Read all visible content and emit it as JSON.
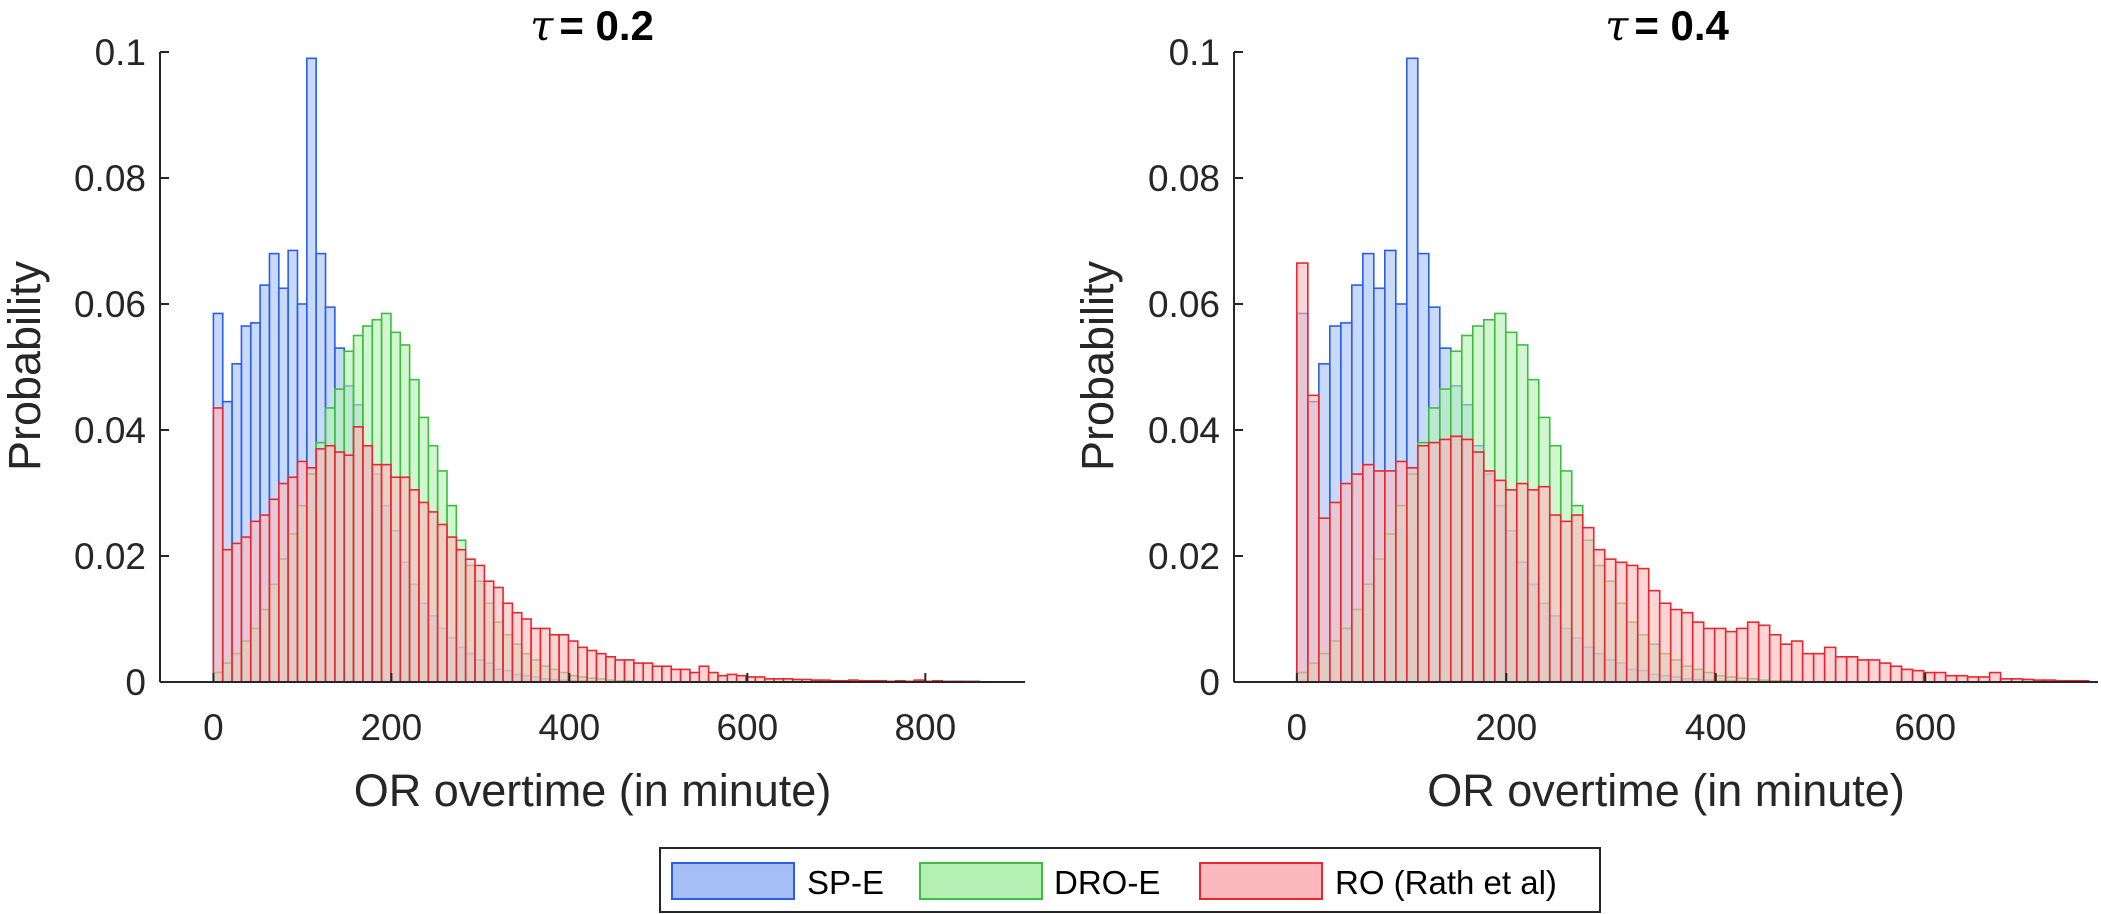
{
  "colors": {
    "sp_e": {
      "fill": "#a5bff6",
      "edge": "#2a5ee8"
    },
    "dro_e": {
      "fill": "#b4f0b4",
      "edge": "#3cbf3c"
    },
    "ro": {
      "fill": "#fbb9bd",
      "edge": "#e8272e"
    },
    "axis": "#262626"
  },
  "legend": {
    "entries": [
      {
        "label": "SP-E",
        "series": "sp_e"
      },
      {
        "label": "DRO-E",
        "series": "dro_e"
      },
      {
        "label": "RO (Rath et al)",
        "series": "ro"
      }
    ]
  },
  "chart_data": [
    {
      "type": "bar",
      "title": "= 0.2",
      "title_symbol": "τ",
      "xlabel": "OR overtime (in minute)",
      "ylabel": "Probability",
      "xlim": [
        -60,
        912
      ],
      "ylim": [
        0,
        0.1
      ],
      "xticks": [
        0,
        200,
        400,
        600,
        800
      ],
      "xtick_labels": [
        "0",
        "200",
        "400",
        "600",
        "800"
      ],
      "yticks": [
        0,
        0.02,
        0.04,
        0.06,
        0.08,
        0.1
      ],
      "ytick_labels": [
        "0",
        "0.02",
        "0.04",
        "0.06",
        "0.08",
        "0.1"
      ],
      "bin_width": 10.5,
      "bin_start": 0,
      "grid": false,
      "series": [
        {
          "name": "SP-E",
          "key": "sp_e",
          "values": [
            0.0585,
            0.0445,
            0.0505,
            0.0565,
            0.057,
            0.063,
            0.068,
            0.0625,
            0.0685,
            0.06,
            0.099,
            0.068,
            0.0595,
            0.053,
            0.047,
            0.044,
            0.0375,
            0.033,
            0.028,
            0.024,
            0.019,
            0.0155,
            0.0125,
            0.0105,
            0.0085,
            0.007,
            0.0055,
            0.0045,
            0.0035,
            0.003,
            0.002,
            0.0018,
            0.0012,
            0.001,
            0.0008,
            0.0005,
            0.0004,
            0.0003,
            0.0002,
            0.0002,
            0.0001
          ]
        },
        {
          "name": "DRO-E",
          "key": "dro_e",
          "values": [
            0.0015,
            0.003,
            0.0045,
            0.0065,
            0.0085,
            0.0115,
            0.0155,
            0.0195,
            0.0235,
            0.028,
            0.033,
            0.038,
            0.0435,
            0.0465,
            0.0525,
            0.055,
            0.0565,
            0.0575,
            0.0585,
            0.0555,
            0.0535,
            0.048,
            0.042,
            0.0375,
            0.0335,
            0.028,
            0.0225,
            0.0185,
            0.016,
            0.0125,
            0.0095,
            0.0075,
            0.006,
            0.0045,
            0.0035,
            0.0025,
            0.002,
            0.0015,
            0.001,
            0.0008,
            0.0006,
            0.0005,
            0.0003,
            0.0002,
            0.0002,
            0.0001
          ]
        },
        {
          "name": "RO (Rath et al)",
          "key": "ro",
          "values": [
            0.0435,
            0.021,
            0.022,
            0.023,
            0.0255,
            0.0265,
            0.029,
            0.0315,
            0.0325,
            0.035,
            0.034,
            0.037,
            0.0375,
            0.0365,
            0.036,
            0.0405,
            0.0375,
            0.0345,
            0.0345,
            0.0325,
            0.0325,
            0.0305,
            0.0285,
            0.027,
            0.025,
            0.023,
            0.021,
            0.0195,
            0.0185,
            0.016,
            0.015,
            0.0125,
            0.011,
            0.01,
            0.0085,
            0.0085,
            0.0075,
            0.0075,
            0.0065,
            0.0055,
            0.005,
            0.0045,
            0.004,
            0.0035,
            0.0035,
            0.003,
            0.003,
            0.0025,
            0.0025,
            0.002,
            0.002,
            0.0015,
            0.0025,
            0.0015,
            0.001,
            0.0012,
            0.001,
            0.0008,
            0.0008,
            0.0005,
            0.0005,
            0.0005,
            0.0004,
            0.0004,
            0.0003,
            0.0003,
            0.0002,
            0.0002,
            0.0003,
            0.0002,
            0.0002,
            0.0002,
            0.0001,
            0.0002,
            0.0001,
            0.0003,
            0.0001,
            0.0002,
            0.0001,
            0.0001,
            0.0001,
            0.0001
          ]
        }
      ]
    },
    {
      "type": "bar",
      "title": "= 0.4",
      "title_symbol": "τ",
      "xlabel": "OR overtime (in minute)",
      "ylabel": "Probability",
      "xlim": [
        -60,
        765
      ],
      "ylim": [
        0,
        0.1
      ],
      "xticks": [
        0,
        200,
        400,
        600
      ],
      "xtick_labels": [
        "0",
        "200",
        "400",
        "600"
      ],
      "yticks": [
        0,
        0.02,
        0.04,
        0.06,
        0.08,
        0.1
      ],
      "ytick_labels": [
        "0",
        "0.02",
        "0.04",
        "0.06",
        "0.08",
        "0.1"
      ],
      "bin_width": 10.5,
      "bin_start": 0,
      "grid": false,
      "series": [
        {
          "name": "SP-E",
          "key": "sp_e",
          "values": [
            0.0585,
            0.0445,
            0.0505,
            0.0565,
            0.057,
            0.063,
            0.068,
            0.0625,
            0.0685,
            0.06,
            0.099,
            0.068,
            0.0595,
            0.053,
            0.047,
            0.044,
            0.0375,
            0.033,
            0.028,
            0.024,
            0.019,
            0.0155,
            0.0125,
            0.0105,
            0.0085,
            0.007,
            0.0055,
            0.0045,
            0.0035,
            0.003,
            0.002,
            0.0018,
            0.0012,
            0.001,
            0.0008,
            0.0005,
            0.0004,
            0.0003,
            0.0002,
            0.0002,
            0.0001
          ]
        },
        {
          "name": "DRO-E",
          "key": "dro_e",
          "values": [
            0.0015,
            0.003,
            0.0045,
            0.0065,
            0.0085,
            0.0115,
            0.0155,
            0.0195,
            0.0235,
            0.028,
            0.033,
            0.038,
            0.0435,
            0.0465,
            0.0525,
            0.055,
            0.0565,
            0.0575,
            0.0585,
            0.0555,
            0.0535,
            0.048,
            0.042,
            0.0375,
            0.0335,
            0.028,
            0.0225,
            0.0185,
            0.016,
            0.0125,
            0.0095,
            0.0075,
            0.006,
            0.0045,
            0.0035,
            0.0025,
            0.002,
            0.0015,
            0.001,
            0.0008,
            0.0006,
            0.0005,
            0.0003,
            0.0002,
            0.0002,
            0.0001
          ]
        },
        {
          "name": "RO (Rath et al)",
          "key": "ro",
          "values": [
            0.0665,
            0.0455,
            0.026,
            0.0285,
            0.0315,
            0.033,
            0.0345,
            0.0335,
            0.0335,
            0.035,
            0.034,
            0.0375,
            0.038,
            0.0385,
            0.039,
            0.0385,
            0.0365,
            0.0335,
            0.032,
            0.0305,
            0.0315,
            0.0305,
            0.031,
            0.0265,
            0.0255,
            0.0265,
            0.0245,
            0.021,
            0.0195,
            0.019,
            0.0185,
            0.018,
            0.0145,
            0.0125,
            0.0115,
            0.011,
            0.0095,
            0.0085,
            0.0085,
            0.008,
            0.0085,
            0.0095,
            0.009,
            0.0075,
            0.006,
            0.0065,
            0.0045,
            0.0045,
            0.0055,
            0.004,
            0.004,
            0.0035,
            0.0035,
            0.003,
            0.0025,
            0.002,
            0.0018,
            0.0015,
            0.0015,
            0.001,
            0.001,
            0.0008,
            0.0008,
            0.0015,
            0.0005,
            0.0005,
            0.0004,
            0.0003,
            0.0003,
            0.0002,
            0.0002,
            0.0002
          ]
        }
      ]
    }
  ]
}
